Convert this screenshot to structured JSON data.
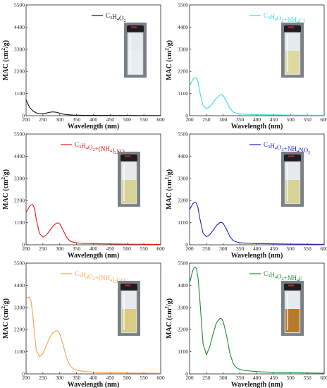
{
  "chart_data": [
    {
      "type": "line",
      "xlabel": "Wavelength (nm)",
      "ylabel": "MAC (cm²/g)",
      "xlim": [
        200,
        600
      ],
      "ylim": [
        0,
        5500
      ],
      "xticks": [
        200,
        250,
        300,
        350,
        400,
        450,
        500,
        550,
        600
      ],
      "yticks": [
        0,
        1100,
        2200,
        3300,
        4400,
        5500
      ],
      "series": [
        {
          "name": "C3H4O2",
          "color": "#111111",
          "x": [
            200,
            205,
            210,
            220,
            230,
            240,
            250,
            260,
            270,
            280,
            290,
            300,
            310,
            320,
            330,
            340,
            350,
            380,
            400,
            450,
            500,
            550,
            600
          ],
          "y": [
            800,
            600,
            420,
            240,
            140,
            100,
            100,
            130,
            170,
            190,
            170,
            120,
            80,
            55,
            40,
            30,
            25,
            18,
            15,
            12,
            10,
            8,
            6
          ]
        }
      ]
    },
    {
      "type": "line",
      "xlabel": "Wavelength (nm)",
      "ylabel": "MAC (cm²/g)",
      "xlim": [
        200,
        600
      ],
      "ylim": [
        0,
        5500
      ],
      "xticks": [
        200,
        250,
        300,
        350,
        400,
        450,
        500,
        550,
        600
      ],
      "yticks": [
        0,
        1100,
        2200,
        3300,
        4400,
        5500
      ],
      "series": [
        {
          "name": "C3H4O2+NH4Cl",
          "color": "#33dde0",
          "x": [
            200,
            205,
            210,
            215,
            220,
            225,
            230,
            240,
            250,
            260,
            270,
            280,
            290,
            295,
            300,
            310,
            320,
            330,
            340,
            350,
            360,
            380,
            400,
            450,
            500,
            550,
            600
          ],
          "y": [
            1500,
            1650,
            1800,
            1880,
            1900,
            1700,
            1200,
            500,
            350,
            450,
            650,
            880,
            1020,
            1040,
            990,
            700,
            360,
            180,
            120,
            90,
            75,
            60,
            50,
            40,
            30,
            25,
            20
          ]
        }
      ]
    },
    {
      "type": "line",
      "xlabel": "Wavelength (nm)",
      "ylabel": "MAC (cm²/g)",
      "xlim": [
        200,
        600
      ],
      "ylim": [
        0,
        5500
      ],
      "xticks": [
        200,
        250,
        300,
        350,
        400,
        450,
        500,
        550,
        600
      ],
      "yticks": [
        0,
        1100,
        2200,
        3300,
        4400,
        5500
      ],
      "series": [
        {
          "name": "C3H4O2+(NH4)2SO4",
          "color": "#e31a1c",
          "x": [
            200,
            205,
            210,
            215,
            220,
            225,
            230,
            240,
            250,
            260,
            270,
            280,
            290,
            295,
            300,
            310,
            320,
            330,
            340,
            350,
            360,
            380,
            400,
            450,
            500,
            550,
            600
          ],
          "y": [
            1600,
            1750,
            1900,
            1980,
            2000,
            1800,
            1300,
            550,
            380,
            480,
            700,
            930,
            1070,
            1090,
            1040,
            730,
            380,
            190,
            130,
            100,
            80,
            65,
            55,
            40,
            30,
            25,
            20
          ]
        }
      ]
    },
    {
      "type": "line",
      "xlabel": "Wavelength (nm)",
      "ylabel": "MAC (cm²/g)",
      "xlim": [
        200,
        600
      ],
      "ylim": [
        0,
        5500
      ],
      "xticks": [
        200,
        250,
        300,
        350,
        400,
        450,
        500,
        550,
        600
      ],
      "yticks": [
        0,
        1100,
        2200,
        3300,
        4400,
        5500
      ],
      "series": [
        {
          "name": "C3H4O2+NH4NO3",
          "color": "#1f1fd0",
          "x": [
            200,
            205,
            210,
            215,
            220,
            225,
            230,
            240,
            250,
            260,
            270,
            280,
            290,
            295,
            300,
            310,
            320,
            330,
            340,
            350,
            360,
            380,
            400,
            450,
            500,
            550,
            600
          ],
          "y": [
            1750,
            1900,
            2050,
            2100,
            2080,
            1850,
            1350,
            580,
            400,
            500,
            720,
            960,
            1100,
            1110,
            1060,
            760,
            400,
            200,
            140,
            105,
            85,
            70,
            60,
            45,
            35,
            28,
            22
          ]
        }
      ]
    },
    {
      "type": "line",
      "xlabel": "Wavelength (nm)",
      "ylabel": "MAC (cm²/g)",
      "xlim": [
        200,
        600
      ],
      "ylim": [
        0,
        5500
      ],
      "xticks": [
        200,
        250,
        300,
        350,
        400,
        450,
        500,
        550,
        600
      ],
      "yticks": [
        0,
        1100,
        2200,
        3300,
        4400,
        5500
      ],
      "series": [
        {
          "name": "C3H4O2+(NH4)2CO3",
          "color": "#f5a050",
          "x": [
            200,
            205,
            210,
            215,
            220,
            225,
            230,
            240,
            250,
            260,
            270,
            280,
            290,
            295,
            300,
            310,
            320,
            330,
            340,
            350,
            360,
            380,
            400,
            450,
            500,
            550,
            600
          ],
          "y": [
            3700,
            3800,
            3820,
            3600,
            2900,
            2000,
            1200,
            850,
            1000,
            1400,
            1800,
            2050,
            2150,
            2120,
            2000,
            1450,
            800,
            420,
            260,
            190,
            150,
            110,
            90,
            60,
            45,
            35,
            28
          ]
        }
      ]
    },
    {
      "type": "line",
      "xlabel": "Wavelength (nm)",
      "ylabel": "MAC (cm²/g)",
      "xlim": [
        200,
        600
      ],
      "ylim": [
        0,
        5500
      ],
      "xticks": [
        200,
        250,
        300,
        350,
        400,
        450,
        500,
        550,
        600
      ],
      "yticks": [
        0,
        1100,
        2200,
        3300,
        4400,
        5500
      ],
      "series": [
        {
          "name": "C3H4O2+NH4F",
          "color": "#1e8a30",
          "x": [
            200,
            205,
            210,
            215,
            220,
            225,
            230,
            240,
            250,
            260,
            270,
            280,
            290,
            295,
            300,
            310,
            320,
            330,
            340,
            350,
            360,
            380,
            400,
            450,
            500,
            550,
            600
          ],
          "y": [
            4500,
            4850,
            5150,
            5300,
            5250,
            4800,
            3800,
            1500,
            950,
            1350,
            2000,
            2550,
            2750,
            2740,
            2600,
            1900,
            1000,
            500,
            300,
            220,
            180,
            140,
            110,
            80,
            60,
            45,
            35
          ]
        }
      ]
    }
  ],
  "legends": [
    {
      "main": "C",
      "s1": "3",
      "m2": "H",
      "s2": "4",
      "m3": "O",
      "s3": "2",
      "tail": "",
      "s4": "",
      "tail2": ""
    },
    {
      "main": "C",
      "s1": "3",
      "m2": "H",
      "s2": "4",
      "m3": "O",
      "s3": "2",
      "tail": "+NH",
      "s4": "4",
      "tail2": "Cl"
    },
    {
      "main": "C",
      "s1": "3",
      "m2": "H",
      "s2": "4",
      "m3": "O",
      "s3": "2",
      "tail": "+(NH",
      "s4": "4",
      "tail2": ")",
      "s5": "2",
      "tail3": "SO",
      "s6": "4"
    },
    {
      "main": "C",
      "s1": "3",
      "m2": "H",
      "s2": "4",
      "m3": "O",
      "s3": "2",
      "tail": "+NH",
      "s4": "4",
      "tail2": "NO",
      "s5": "3"
    },
    {
      "main": "C",
      "s1": "3",
      "m2": "H",
      "s2": "4",
      "m3": "O",
      "s3": "2",
      "tail": "+(NH",
      "s4": "4",
      "tail2": ")",
      "s5": "2",
      "tail3": "CO",
      "s6": "3"
    },
    {
      "main": "C",
      "s1": "3",
      "m2": "H",
      "s2": "4",
      "m3": "O",
      "s3": "2",
      "tail": "+NH",
      "s4": "4",
      "tail2": "F"
    }
  ],
  "vial_colors": [
    "#e9eef0",
    "#dcd9a0",
    "#d8d296",
    "#d7d394",
    "#d9cc82",
    "#b87a28"
  ]
}
